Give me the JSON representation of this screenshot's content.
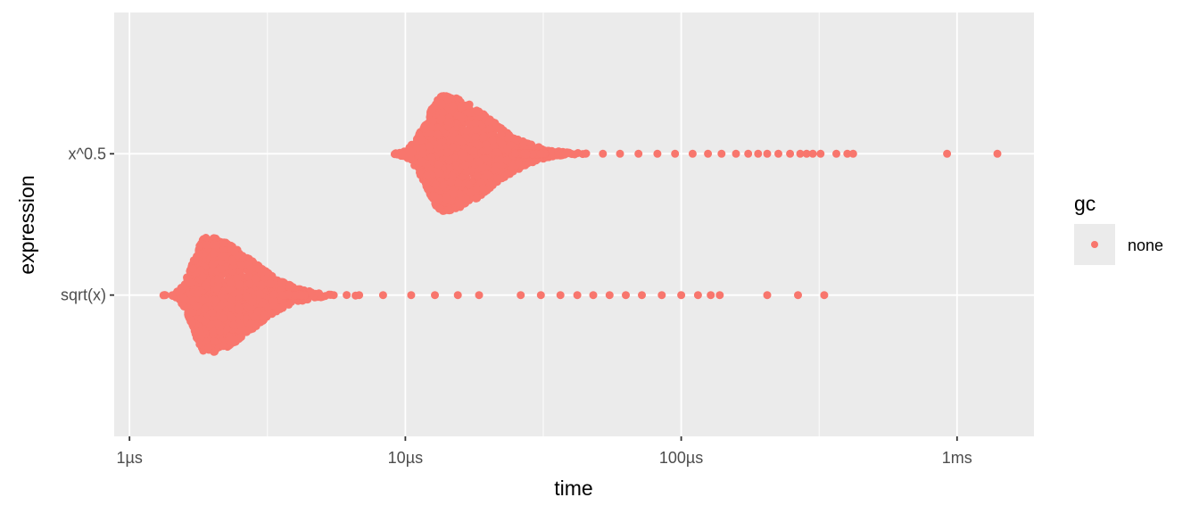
{
  "chart_data": {
    "type": "beeswarm",
    "title": "",
    "xlabel": "time",
    "ylabel": "expression",
    "x_scale": "log10",
    "x_unit": "seconds",
    "xlim": [
      8.8e-07,
      0.0019
    ],
    "x_ticks": [
      {
        "value": 1e-06,
        "label": "1µs"
      },
      {
        "value": 1e-05,
        "label": "10µs"
      },
      {
        "value": 0.0001,
        "label": "100µs"
      },
      {
        "value": 0.001,
        "label": "1ms"
      }
    ],
    "y_categories": [
      "sqrt(x)",
      "x^0.5"
    ],
    "grid": true,
    "point_color": "#F8766D",
    "panel_background": "#EBEBEB",
    "grid_color": "#FFFFFF",
    "legend": {
      "title": "gc",
      "position": "right",
      "entries": [
        {
          "label": "none",
          "color": "#F8766D"
        }
      ]
    },
    "series": [
      {
        "category": "sqrt(x)",
        "gc": "none",
        "mode_s": 1.9e-06,
        "median_s": 2.2e-06,
        "min_s": 1.3e-06,
        "outliers_s": [
          3.6e-06,
          4.2e-06,
          5.5e-06,
          6.8e-06,
          8.3e-06,
          1.05e-05,
          1.28e-05,
          1.55e-05,
          1.85e-05,
          2.62e-05,
          3.1e-05,
          3.65e-05,
          4.2e-05,
          4.8e-05,
          5.5e-05,
          6.3e-05,
          7.2e-05,
          8.5e-05,
          0.0001,
          0.000115,
          0.000128,
          0.000138,
          0.000205,
          0.000265,
          0.00033
        ]
      },
      {
        "category": "x^0.5",
        "gc": "none",
        "mode_s": 1.37e-05,
        "median_s": 1.6e-05,
        "min_s": 8.4e-06,
        "outliers_s": [
          2.5e-05,
          3.1e-05,
          3.8e-05,
          4.5e-05,
          5.2e-05,
          6e-05,
          7e-05,
          8.2e-05,
          9.5e-05,
          0.00011,
          0.000125,
          0.00014,
          0.000158,
          0.000175,
          0.00019,
          0.000205,
          0.000225,
          0.000248,
          0.00027,
          0.000285,
          0.0003,
          0.00032,
          0.000365,
          0.0004,
          0.00042,
          0.00092,
          0.0014
        ]
      }
    ]
  }
}
